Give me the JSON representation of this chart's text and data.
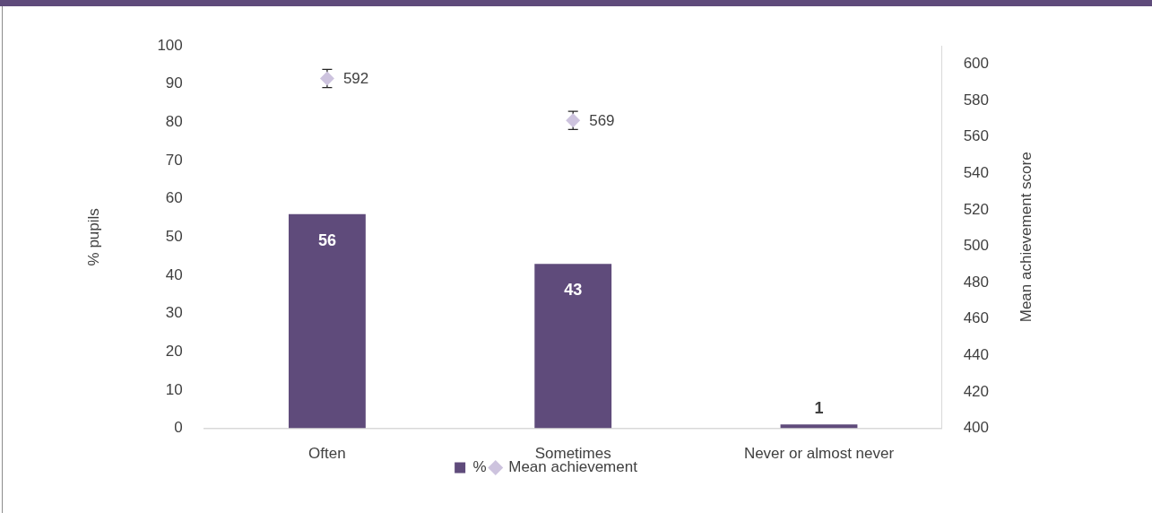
{
  "chart_data": {
    "type": "bar",
    "categories": [
      "Often",
      "Sometimes",
      "Never or almost never"
    ],
    "series": [
      {
        "name": "%",
        "color": "#5f4b7b",
        "values": [
          56,
          43,
          1
        ]
      },
      {
        "name": "Mean achievement",
        "type": "scatter",
        "axis": "y2",
        "marker": "diamond",
        "color": "#cdc3de",
        "values": [
          592,
          569,
          null
        ],
        "errors": [
          5,
          5,
          null
        ]
      }
    ],
    "ylabel": "% pupils",
    "y2label": "Mean achievement score",
    "ylim": [
      0,
      100
    ],
    "yticks": [
      0,
      10,
      20,
      30,
      40,
      50,
      60,
      70,
      80,
      90,
      100
    ],
    "y2lim": [
      400,
      610
    ],
    "y2ticks": [
      400,
      420,
      440,
      460,
      480,
      500,
      520,
      540,
      560,
      580,
      600
    ],
    "grid": false,
    "legend": "bottom",
    "data_labels": true
  }
}
